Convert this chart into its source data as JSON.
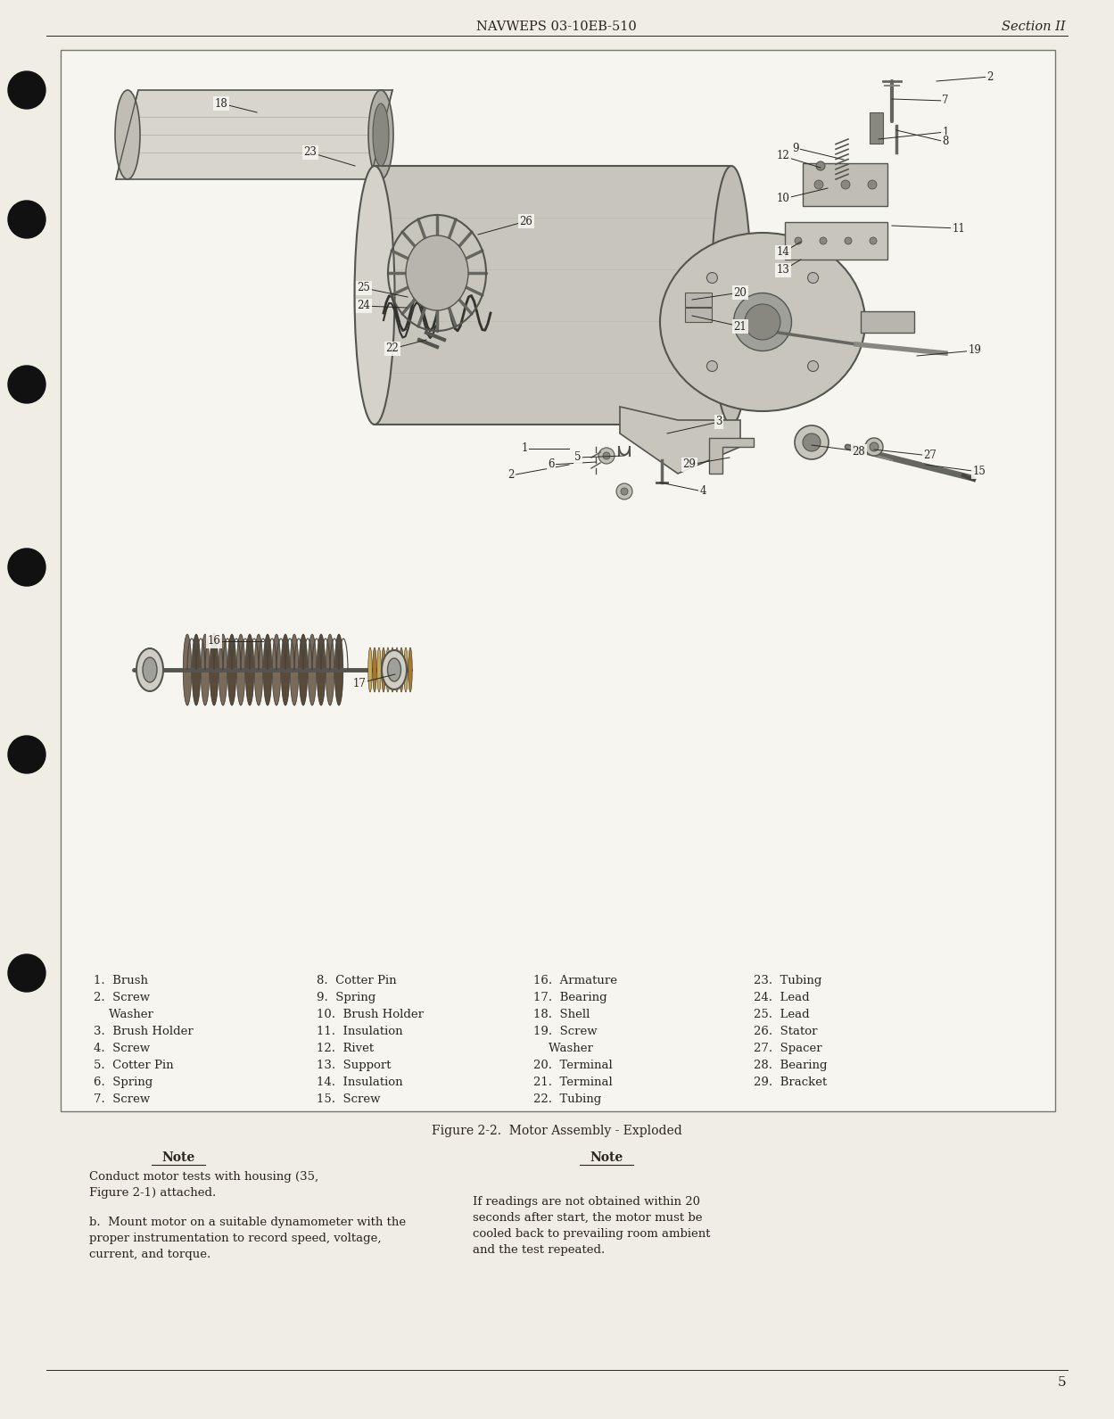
{
  "bg_color": "#f0ede4",
  "page_bg": "#f0ede4",
  "box_bg": "#f7f5f0",
  "header_center": "NAVWEPS 03-10EB-510",
  "header_right": "Section II",
  "footer_page": "5",
  "figure_caption": "Figure 2-2.  Motor Assembly - Exploded",
  "parts_col1": [
    "1.  Brush",
    "2.  Screw",
    "    Washer",
    "3.  Brush Holder",
    "4.  Screw",
    "5.  Cotter Pin",
    "6.  Spring",
    "7.  Screw"
  ],
  "parts_col2": [
    "8.  Cotter Pin",
    "9.  Spring",
    "10.  Brush Holder",
    "11.  Insulation",
    "12.  Rivet",
    "13.  Support",
    "14.  Insulation",
    "15.  Screw"
  ],
  "parts_col3": [
    "16.  Armature",
    "17.  Bearing",
    "18.  Shell",
    "19.  Screw",
    "    Washer",
    "20.  Terminal",
    "21.  Terminal",
    "22.  Tubing"
  ],
  "parts_col4": [
    "23.  Tubing",
    "24.  Lead",
    "25.  Lead",
    "26.  Stator",
    "27.  Spacer",
    "28.  Bearing",
    "29.  Bracket",
    ""
  ],
  "note1_title": "Note",
  "note1_text1": "Conduct motor tests with housing (35,",
  "note1_text2": "Figure 2-1) attached.",
  "note1_textb": "b.  Mount motor on a suitable dynamometer with the",
  "note1_textb2": "proper instrumentation to record speed, voltage,",
  "note1_textb3": "current, and torque.",
  "note2_title": "Note",
  "note2_text1": "If readings are not obtained within 20",
  "note2_text2": "seconds after start, the motor must be",
  "note2_text3": "cooled back to prevailing room ambient",
  "note2_text4": "and the test repeated.",
  "text_color": "#2a2520",
  "line_color": "#555550",
  "box_line_color": "#777770"
}
